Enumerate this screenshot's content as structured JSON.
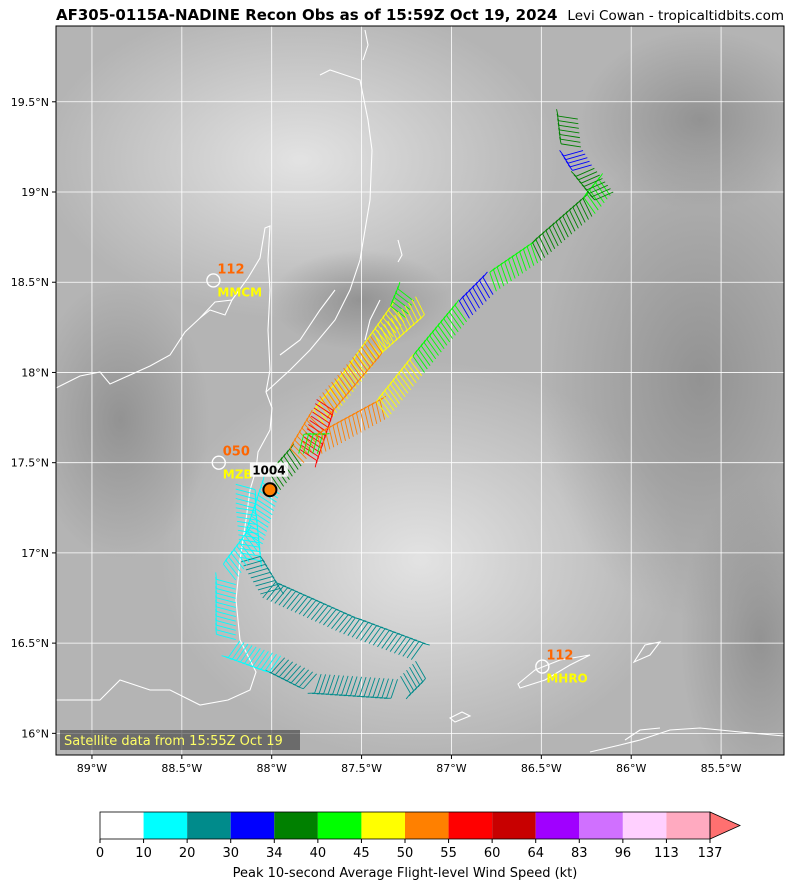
{
  "header": {
    "title": "AF305-0115A-NADINE Recon Obs as of 15:59Z Oct 19, 2024",
    "credit": "Levi Cowan - tropicaltidbits.com"
  },
  "map": {
    "lon_range": [
      -89.2,
      -85.15
    ],
    "lat_range": [
      15.88,
      19.92
    ],
    "lon_ticks": [
      "89°W",
      "88.5°W",
      "88°W",
      "87.5°W",
      "87°W",
      "86.5°W",
      "86°W",
      "85.5°W"
    ],
    "lon_tick_values": [
      -89,
      -88.5,
      -88,
      -87.5,
      -87,
      -86.5,
      -86,
      -85.5
    ],
    "lat_ticks": [
      "16°N",
      "16.5°N",
      "17°N",
      "17.5°N",
      "18°N",
      "18.5°N",
      "19°N",
      "19.5°N"
    ],
    "lat_tick_values": [
      16,
      16.5,
      17,
      17.5,
      18,
      18.5,
      19,
      19.5
    ],
    "satellite_note": "Satellite data from 15:55Z Oct 19",
    "grid": true
  },
  "stations": [
    {
      "id": "MMCM",
      "value": "112",
      "lon": -88.33,
      "lat": 18.51
    },
    {
      "id": "MZB",
      "value": "050",
      "lon": -88.3,
      "lat": 17.5
    },
    {
      "id": "MHRO",
      "value": "112",
      "lon": -86.5,
      "lat": 16.37
    }
  ],
  "center": {
    "pressure": "1004",
    "lon": -88.01,
    "lat": 17.35
  },
  "flight_track": [
    {
      "from": [
        -88.2,
        17.38
      ],
      "to": [
        -88.2,
        17.25
      ],
      "wind": 12
    },
    {
      "from": [
        -88.2,
        17.25
      ],
      "to": [
        -88.17,
        16.95
      ],
      "wind": 15
    },
    {
      "from": [
        -88.17,
        16.95
      ],
      "to": [
        -88.05,
        16.75
      ],
      "wind": 24
    },
    {
      "from": [
        -88.05,
        16.75
      ],
      "to": [
        -87.6,
        16.55
      ],
      "wind": 24
    },
    {
      "from": [
        -87.6,
        16.55
      ],
      "to": [
        -87.2,
        16.4
      ],
      "wind": 24
    },
    {
      "from": [
        -87.2,
        16.4
      ],
      "to": [
        -87.3,
        16.3
      ],
      "wind": 24
    },
    {
      "from": [
        -87.3,
        16.3
      ],
      "to": [
        -87.75,
        16.33
      ],
      "wind": 24
    },
    {
      "from": [
        -87.75,
        16.33
      ],
      "to": [
        -87.95,
        16.43
      ],
      "wind": 24
    },
    {
      "from": [
        -87.95,
        16.43
      ],
      "to": [
        -88.2,
        16.52
      ],
      "wind": 15
    },
    {
      "from": [
        -88.2,
        16.52
      ],
      "to": [
        -88.2,
        16.85
      ],
      "wind": 15
    },
    {
      "from": [
        -88.2,
        16.85
      ],
      "to": [
        -88.05,
        17.05
      ],
      "wind": 15
    },
    {
      "from": [
        -88.05,
        17.05
      ],
      "to": [
        -87.95,
        17.35
      ],
      "wind": 15
    },
    {
      "from": [
        -87.95,
        17.35
      ],
      "to": [
        -87.82,
        17.5
      ],
      "wind": 35
    },
    {
      "from": [
        -87.82,
        17.5
      ],
      "to": [
        -87.7,
        17.7
      ],
      "wind": 52
    },
    {
      "from": [
        -87.7,
        17.7
      ],
      "to": [
        -87.5,
        17.95
      ],
      "wind": 47
    },
    {
      "from": [
        -87.5,
        17.95
      ],
      "to": [
        -87.25,
        18.3
      ],
      "wind": 46
    },
    {
      "from": [
        -87.25,
        18.3
      ],
      "to": [
        -87.2,
        18.42
      ],
      "wind": 42
    },
    {
      "from": [
        -87.2,
        18.42
      ],
      "to": [
        -87.45,
        18.2
      ],
      "wind": 47
    },
    {
      "from": [
        -87.45,
        18.2
      ],
      "to": [
        -87.75,
        17.85
      ],
      "wind": 52
    },
    {
      "from": [
        -87.75,
        17.85
      ],
      "to": [
        -87.85,
        17.55
      ],
      "wind": 57
    },
    {
      "from": [
        -87.85,
        17.55
      ],
      "to": [
        -87.72,
        17.55
      ],
      "wind": 40
    },
    {
      "from": [
        -87.72,
        17.55
      ],
      "to": [
        -87.35,
        17.75
      ],
      "wind": 51
    },
    {
      "from": [
        -87.35,
        17.75
      ],
      "to": [
        -87.15,
        18.0
      ],
      "wind": 46
    },
    {
      "from": [
        -87.15,
        18.0
      ],
      "to": [
        -86.9,
        18.3
      ],
      "wind": 42
    },
    {
      "from": [
        -86.9,
        18.3
      ],
      "to": [
        -86.75,
        18.45
      ],
      "wind": 31
    },
    {
      "from": [
        -86.75,
        18.45
      ],
      "to": [
        -86.5,
        18.62
      ],
      "wind": 42
    },
    {
      "from": [
        -86.5,
        18.62
      ],
      "to": [
        -86.2,
        18.88
      ],
      "wind": 37
    },
    {
      "from": [
        -86.2,
        18.88
      ],
      "to": [
        -86.1,
        19.0
      ],
      "wind": 42
    },
    {
      "from": [
        -86.1,
        19.0
      ],
      "to": [
        -86.22,
        19.15
      ],
      "wind": 37
    },
    {
      "from": [
        -86.22,
        19.15
      ],
      "to": [
        -86.28,
        19.25
      ],
      "wind": 31
    },
    {
      "from": [
        -86.28,
        19.25
      ],
      "to": [
        -86.3,
        19.43
      ],
      "wind": 36
    }
  ],
  "colorbar": {
    "ticks": [
      "0",
      "10",
      "20",
      "30",
      "34",
      "40",
      "45",
      "50",
      "55",
      "60",
      "64",
      "83",
      "96",
      "113",
      "137"
    ],
    "colors": [
      "#ffffff",
      "#00ffff",
      "#008b8b",
      "#0000ff",
      "#008000",
      "#00ff00",
      "#ffff00",
      "#ff8000",
      "#ff0000",
      "#c80000",
      "#a000ff",
      "#d070ff",
      "#ffd0ff",
      "#ffaac0",
      "#ff7070"
    ],
    "label": "Peak 10-second Average Flight-level Wind Speed (kt)"
  },
  "colors": {
    "station_value": "#ff6600",
    "station_id": "#ffff00",
    "center_marker": "#ff7f00",
    "coast": "#ffffff"
  }
}
